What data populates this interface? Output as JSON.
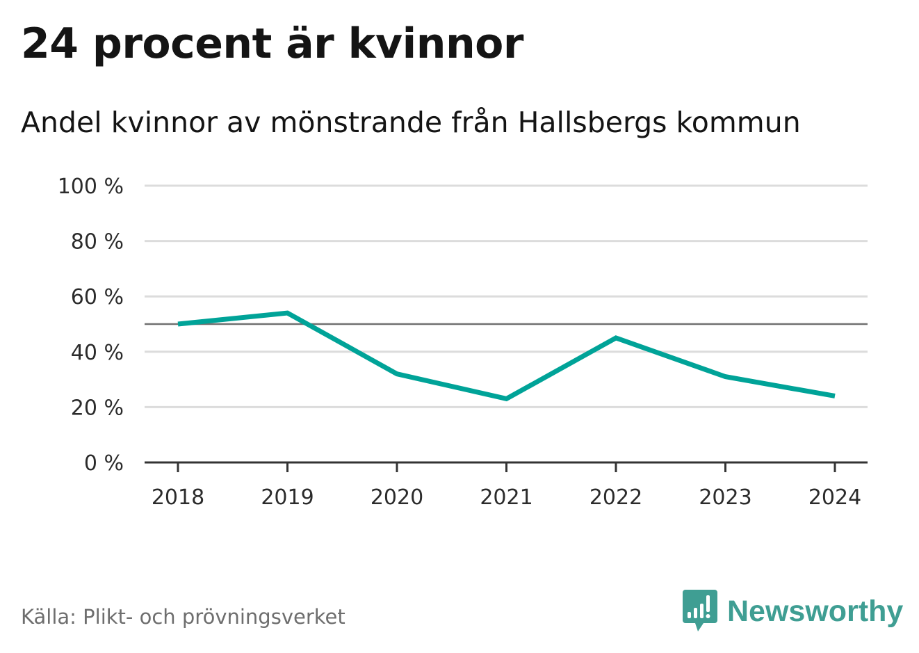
{
  "colors": {
    "line": "#00a398",
    "grid": "#dcdcdc",
    "reference": "#707070",
    "axis": "#333333",
    "brand": "#3f9e93"
  },
  "chart_data": {
    "type": "line",
    "title": "24 procent är kvinnor",
    "subtitle": "Andel kvinnor av mönstrande från Hallsbergs kommun",
    "categories": [
      "2018",
      "2019",
      "2020",
      "2021",
      "2022",
      "2023",
      "2024"
    ],
    "series": [
      {
        "name": "Andel kvinnor",
        "values": [
          50,
          54,
          32,
          23,
          45,
          31,
          24
        ]
      }
    ],
    "reference_line": 50,
    "ylim": [
      0,
      100
    ],
    "yticks": [
      0,
      20,
      40,
      60,
      80,
      100
    ],
    "ytick_labels": [
      "0 %",
      "20 %",
      "40 %",
      "60 %",
      "80 %",
      "100 %"
    ],
    "xlabel": "",
    "ylabel": "",
    "grid": true,
    "legend": "none"
  },
  "footer": {
    "source": "Källa: Plikt- och prövningsverket",
    "brand": "Newsworthy",
    "brand_icon": "newsworthy-logo-icon"
  }
}
